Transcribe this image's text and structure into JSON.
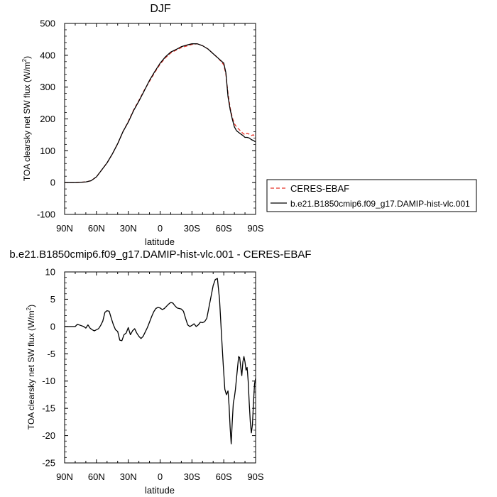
{
  "chart_data": [
    {
      "type": "line",
      "title": "DJF",
      "xlabel": "latitude",
      "ylabel": "TOA clearsky net SW flux (W/m²)",
      "ylabel_main": "TOA clearsky net SW flux (W/m",
      "ylabel_sup": "2",
      "ylabel_close": ")",
      "xlim": [
        90,
        -90
      ],
      "ylim": [
        -100,
        500
      ],
      "x_ticks": [
        {
          "value": 90,
          "label": "90N"
        },
        {
          "value": 60,
          "label": "60N"
        },
        {
          "value": 30,
          "label": "30N"
        },
        {
          "value": 0,
          "label": "0"
        },
        {
          "value": -30,
          "label": "30S"
        },
        {
          "value": -60,
          "label": "60S"
        },
        {
          "value": -90,
          "label": "90S"
        }
      ],
      "y_ticks": [
        {
          "value": -100,
          "label": "-100"
        },
        {
          "value": 0,
          "label": "0"
        },
        {
          "value": 100,
          "label": "100"
        },
        {
          "value": 200,
          "label": "200"
        },
        {
          "value": 300,
          "label": "300"
        },
        {
          "value": 400,
          "label": "400"
        },
        {
          "value": 500,
          "label": "500"
        }
      ],
      "legend": "outside-right",
      "series": [
        {
          "name": "CERES-EBAF",
          "color": "#e8342a",
          "dash": "dashed",
          "x": [
            90,
            80,
            70,
            65,
            60,
            55,
            50,
            45,
            40,
            35,
            30,
            25,
            20,
            15,
            10,
            5,
            0,
            -5,
            -10,
            -15,
            -20,
            -25,
            -30,
            -35,
            -40,
            -45,
            -50,
            -55,
            -60,
            -62,
            -64,
            -66,
            -68,
            -70,
            -72,
            -75,
            -78,
            -80,
            -82,
            -84,
            -86,
            -88,
            -90
          ],
          "y": [
            0,
            0,
            2,
            6,
            18,
            40,
            62,
            90,
            122,
            160,
            192,
            228,
            258,
            290,
            318,
            346,
            372,
            392,
            407,
            416,
            424,
            429,
            434,
            436,
            430,
            420,
            405,
            390,
            370,
            340,
            280,
            235,
            205,
            185,
            175,
            165,
            155,
            150,
            155,
            152,
            148,
            150,
            140
          ]
        },
        {
          "name": "b.e21.B1850cmip6.f09_g17.DAMIP-hist-vlc.001",
          "color": "#000000",
          "dash": "solid",
          "x": [
            90,
            80,
            70,
            65,
            60,
            55,
            50,
            45,
            40,
            35,
            30,
            25,
            20,
            15,
            10,
            5,
            0,
            -5,
            -10,
            -15,
            -20,
            -25,
            -30,
            -35,
            -40,
            -45,
            -50,
            -55,
            -60,
            -62,
            -64,
            -66,
            -68,
            -70,
            -72,
            -75,
            -78,
            -80,
            -82,
            -84,
            -86,
            -88,
            -90
          ],
          "y": [
            0,
            0,
            2,
            6,
            18,
            40,
            62,
            90,
            122,
            160,
            190,
            226,
            256,
            288,
            321,
            349,
            375,
            395,
            410,
            418,
            427,
            432,
            436,
            436,
            430,
            420,
            405,
            390,
            375,
            345,
            270,
            230,
            200,
            175,
            163,
            155,
            148,
            142,
            142,
            140,
            135,
            132,
            128
          ]
        }
      ]
    },
    {
      "type": "line",
      "title": "b.e21.B1850cmip6.f09_g17.DAMIP-hist-vlc.001 - CERES-EBAF",
      "xlabel": "latitude",
      "ylabel": "TOA clearsky net SW flux (W/m²)",
      "ylabel_main": "TOA clearsky net SW flux (W/m",
      "ylabel_sup": "2",
      "ylabel_close": ")",
      "xlim": [
        90,
        -90
      ],
      "ylim": [
        -25,
        10
      ],
      "x_ticks": [
        {
          "value": 90,
          "label": "90N"
        },
        {
          "value": 60,
          "label": "60N"
        },
        {
          "value": 30,
          "label": "30N"
        },
        {
          "value": 0,
          "label": "0"
        },
        {
          "value": -30,
          "label": "30S"
        },
        {
          "value": -60,
          "label": "60S"
        },
        {
          "value": -90,
          "label": "90S"
        }
      ],
      "y_ticks": [
        {
          "value": -25,
          "label": "-25"
        },
        {
          "value": -20,
          "label": "-20"
        },
        {
          "value": -15,
          "label": "-15"
        },
        {
          "value": -10,
          "label": "-10"
        },
        {
          "value": -5,
          "label": "-5"
        },
        {
          "value": 0,
          "label": "0"
        },
        {
          "value": 5,
          "label": "5"
        },
        {
          "value": 10,
          "label": "10"
        }
      ],
      "series": [
        {
          "name": "",
          "color": "#000000",
          "dash": "solid",
          "x": [
            90,
            80,
            78,
            75,
            72,
            70,
            68,
            66,
            64,
            62,
            60,
            58,
            56,
            54,
            52,
            50,
            48,
            46,
            44,
            42,
            40,
            38,
            36,
            34,
            32,
            30,
            28,
            26,
            24,
            22,
            20,
            18,
            16,
            14,
            12,
            10,
            8,
            6,
            4,
            2,
            0,
            -2,
            -4,
            -6,
            -8,
            -10,
            -12,
            -14,
            -16,
            -18,
            -20,
            -22,
            -24,
            -26,
            -28,
            -30,
            -32,
            -34,
            -36,
            -38,
            -40,
            -42,
            -44,
            -46,
            -48,
            -50,
            -52,
            -54,
            -56,
            -58,
            -59.5,
            -61,
            -62.5,
            -64,
            -65,
            -66,
            -67,
            -68,
            -69,
            -70,
            -71,
            -72,
            -73,
            -74,
            -75,
            -76,
            -77,
            -78,
            -79,
            -80,
            -81,
            -82,
            -83,
            -84,
            -85,
            -86,
            -87,
            -88,
            -89,
            -90
          ],
          "y": [
            0,
            0,
            0.4,
            0.2,
            0,
            -0.3,
            0.3,
            -0.3,
            -0.6,
            -0.8,
            -0.6,
            -0.4,
            0.2,
            1,
            2.6,
            2.9,
            2.8,
            1.5,
            0.3,
            -0.6,
            -0.9,
            -2.5,
            -2.6,
            -1.5,
            -1.2,
            -0.2,
            -1.5,
            -0.8,
            -0.4,
            -1.2,
            -1.8,
            -2.2,
            -1.8,
            -1.0,
            -0.2,
            0.8,
            1.8,
            2.7,
            3.3,
            3.5,
            3.4,
            3.1,
            3.3,
            3.7,
            4.1,
            4.4,
            4.3,
            3.8,
            3.4,
            3.3,
            3.2,
            2.8,
            1.5,
            0.3,
            0.0,
            0.2,
            0.5,
            0.0,
            0.3,
            0.8,
            0.7,
            0.9,
            1.5,
            3.5,
            5.5,
            7.5,
            8.6,
            8.8,
            5.0,
            -2.0,
            -7.0,
            -11.5,
            -12.5,
            -11.8,
            -14.5,
            -18.5,
            -21.5,
            -17.5,
            -14.0,
            -13.0,
            -11.5,
            -9.5,
            -7.5,
            -5.5,
            -5.7,
            -7.5,
            -9.0,
            -6.5,
            -5.5,
            -6.5,
            -8.0,
            -7.5,
            -10.0,
            -14.0,
            -17.5,
            -19.5,
            -18.0,
            -14.0,
            -10.5,
            -9.5
          ]
        }
      ]
    }
  ]
}
